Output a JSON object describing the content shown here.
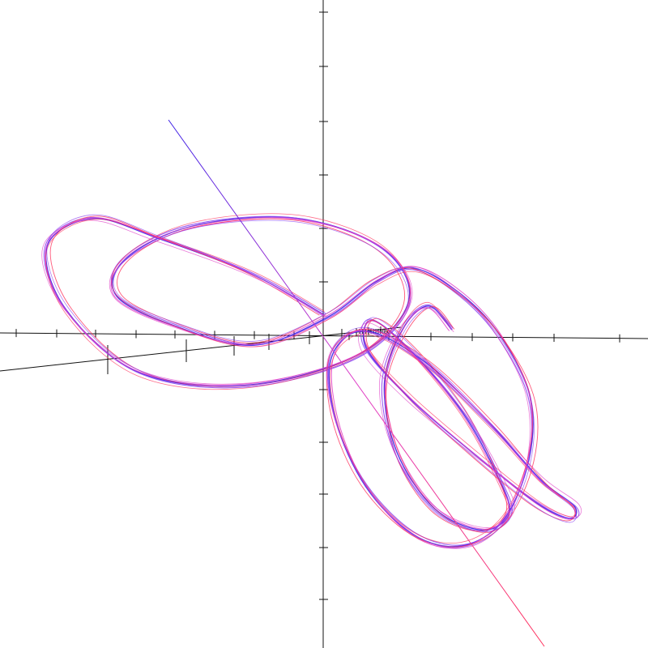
{
  "chart_data": {
    "type": "line",
    "projection": "3d-perspective",
    "grid": false,
    "legend": "none",
    "axes": {
      "x": {
        "label": "",
        "ticks": 22,
        "direction": "horizontal"
      },
      "y": {
        "label": "",
        "ticks": 12,
        "direction": "vertical"
      },
      "z": {
        "label": "",
        "ticks": 12,
        "direction": "oblique"
      }
    },
    "series": [
      {
        "colors": [
          "#3b1fe6",
          "#8a3ff0",
          "#e040c8",
          "#ff2f5a"
        ],
        "x": [
          0.0,
          -0.8,
          -1.9,
          -2.7,
          -3.2,
          -3.0,
          -2.2,
          -1.0,
          0.3,
          0.9,
          0.6,
          -0.4,
          -1.6,
          -2.4,
          -2.6,
          -2.0,
          -1.1,
          -0.2,
          0.6,
          1.4,
          2.4,
          3.3,
          3.9,
          3.8,
          3.1,
          2.0,
          0.8,
          -0.3,
          -0.9,
          -0.8,
          0.1,
          1.3,
          2.5,
          3.4,
          3.8,
          3.4,
          2.5,
          1.4,
          0.5,
          0.2,
          0.7,
          1.6,
          2.6,
          3.2,
          3.1,
          2.3,
          1.2,
          0.4,
          0.3,
          0.9,
          1.6,
          2.1
        ],
        "y": [
          0.4,
          1.2,
          1.9,
          2.3,
          1.8,
          0.6,
          -0.6,
          -0.9,
          -0.4,
          0.6,
          1.6,
          2.2,
          2.1,
          1.5,
          0.8,
          0.2,
          -0.2,
          0.3,
          1.0,
          1.3,
          0.9,
          0.2,
          -0.9,
          -2.1,
          -3.3,
          -3.9,
          -3.8,
          -3.0,
          -1.8,
          -0.6,
          0.0,
          -0.5,
          -1.6,
          -2.6,
          -3.1,
          -3.4,
          -3.2,
          -2.4,
          -1.3,
          -0.3,
          0.3,
          -0.2,
          -1.3,
          -2.5,
          -3.2,
          -3.6,
          -3.3,
          -2.3,
          -1.0,
          0.1,
          0.6,
          0.2
        ],
        "z": [
          0.0,
          0.3,
          0.6,
          0.8,
          1.0,
          0.9,
          0.6,
          0.2,
          -0.2,
          -0.4,
          -0.3,
          0.0,
          0.4,
          0.6,
          0.5,
          0.2,
          -0.1,
          -0.3,
          -0.2,
          0.1,
          0.5,
          0.9,
          1.1,
          1.0,
          0.6,
          0.0,
          -0.6,
          -1.1,
          -1.3,
          -1.1,
          -0.6,
          -0.2,
          0.1,
          0.3,
          0.2,
          -0.2,
          -0.7,
          -1.0,
          -0.9,
          -0.5,
          0.0,
          0.4,
          0.7,
          0.8,
          0.5,
          0.0,
          -0.5,
          -0.8,
          -0.7,
          -0.3,
          0.1,
          0.3
        ]
      }
    ]
  }
}
